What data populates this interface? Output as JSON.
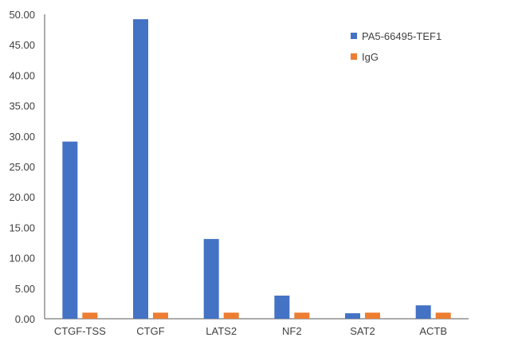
{
  "chart_data": {
    "type": "bar",
    "categories": [
      "CTGF-TSS",
      "CTGF",
      "LATS2",
      "NF2",
      "SAT2",
      "ACTB"
    ],
    "series": [
      {
        "name": "PA5-66495-TEF1",
        "values": [
          29.1,
          49.2,
          13.1,
          3.8,
          0.9,
          2.2
        ],
        "color": "#4472C4"
      },
      {
        "name": "IgG",
        "values": [
          1.0,
          1.0,
          1.0,
          1.0,
          1.0,
          1.0
        ],
        "color": "#ED7D31"
      }
    ],
    "ylim": [
      0,
      50
    ],
    "yticks": [
      "0.00",
      "5.00",
      "10.00",
      "15.00",
      "20.00",
      "25.00",
      "30.00",
      "35.00",
      "40.00",
      "45.00",
      "50.00"
    ],
    "title": "",
    "xlabel": "",
    "ylabel": "",
    "grid": false,
    "legend_position": "top-right"
  }
}
